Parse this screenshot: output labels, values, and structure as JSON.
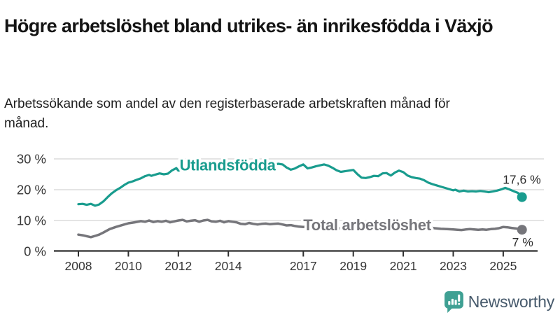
{
  "title": "Högre arbetslöshet bland utrikes- än inrikesfödda i Växjö",
  "subtitle": "Arbetssökande som andel av den registerbaserade arbetskraften månad för månad.",
  "footer": {
    "brand": "Newsworthy"
  },
  "colors": {
    "teal": "#199C8E",
    "gray": "#76767B",
    "grid": "#DBDBDB",
    "axis": "#2F2F2F",
    "axis_text": "#363636",
    "annotation": "#2B2B2B",
    "brand_icon": "#3FA093",
    "brand_text": "#46596B",
    "background": "#FFFFFF"
  },
  "chart_data": {
    "type": "line",
    "title": "Högre arbetslöshet bland utrikes- än inrikesfödda i Växjö",
    "subtitle": "Arbetssökande som andel av den registerbaserade arbetskraften månad för månad.",
    "xlabel": "",
    "ylabel": "",
    "ylim": [
      0,
      33
    ],
    "xlim": [
      2007.9,
      2026.3
    ],
    "grid": true,
    "legend_position": "inline-on-line",
    "y_ticks": [
      0,
      10,
      20,
      30
    ],
    "y_tick_labels": [
      "0 %",
      "10 %",
      "20 %",
      "30 %"
    ],
    "x_ticks": [
      2008,
      2010,
      2012,
      2014,
      2017,
      2019,
      2021,
      2023,
      2025
    ],
    "x_tick_labels": [
      "2008",
      "2010",
      "2012",
      "2014",
      "2017",
      "2019",
      "2021",
      "2023",
      "2025"
    ],
    "series": [
      {
        "id": "utlandsfodda",
        "name": "Utlandsfödda",
        "color": "#199C8E",
        "width": 3.2,
        "end_label": "17,6 %",
        "end_value": 17.6,
        "end_label_anchor": "end",
        "end_label_offset": [
          27,
          -19
        ],
        "label_pos": {
          "x": 2012.05,
          "v": 26.3
        },
        "data": [
          [
            2008.0,
            15.3
          ],
          [
            2008.17,
            15.4
          ],
          [
            2008.33,
            15.1
          ],
          [
            2008.5,
            15.4
          ],
          [
            2008.67,
            14.8
          ],
          [
            2008.83,
            15.2
          ],
          [
            2009.0,
            16.2
          ],
          [
            2009.17,
            17.6
          ],
          [
            2009.33,
            18.8
          ],
          [
            2009.5,
            19.8
          ],
          [
            2009.67,
            20.6
          ],
          [
            2009.83,
            21.5
          ],
          [
            2010.0,
            22.3
          ],
          [
            2010.17,
            22.7
          ],
          [
            2010.33,
            23.2
          ],
          [
            2010.5,
            23.7
          ],
          [
            2010.67,
            24.4
          ],
          [
            2010.83,
            24.8
          ],
          [
            2010.92,
            24.5
          ],
          [
            2011.08,
            24.9
          ],
          [
            2011.25,
            25.3
          ],
          [
            2011.42,
            25.0
          ],
          [
            2011.58,
            25.2
          ],
          [
            2011.75,
            26.3
          ],
          [
            2011.92,
            27.0
          ],
          [
            2012.0,
            26.2
          ],
          [
            2012.17,
            26.6
          ],
          [
            2012.33,
            27.0
          ],
          [
            2012.5,
            27.2
          ],
          [
            2012.67,
            27.5
          ],
          [
            2012.83,
            27.8
          ],
          [
            2013.0,
            28.0
          ],
          [
            2013.25,
            28.3
          ],
          [
            2013.5,
            28.5
          ],
          [
            2013.75,
            28.3
          ],
          [
            2014.0,
            28.6
          ],
          [
            2014.25,
            28.3
          ],
          [
            2014.5,
            28.1
          ],
          [
            2014.75,
            28.0
          ],
          [
            2015.0,
            28.2
          ],
          [
            2015.25,
            27.9
          ],
          [
            2015.5,
            27.7
          ],
          [
            2015.75,
            28.0
          ],
          [
            2016.0,
            28.4
          ],
          [
            2016.17,
            28.2
          ],
          [
            2016.33,
            27.2
          ],
          [
            2016.5,
            26.5
          ],
          [
            2016.67,
            26.9
          ],
          [
            2016.83,
            27.6
          ],
          [
            2017.0,
            28.2
          ],
          [
            2017.17,
            26.9
          ],
          [
            2017.33,
            27.2
          ],
          [
            2017.5,
            27.6
          ],
          [
            2017.67,
            27.9
          ],
          [
            2017.83,
            28.2
          ],
          [
            2018.0,
            27.8
          ],
          [
            2018.17,
            27.1
          ],
          [
            2018.33,
            26.3
          ],
          [
            2018.5,
            25.8
          ],
          [
            2018.67,
            26.0
          ],
          [
            2018.83,
            26.2
          ],
          [
            2019.0,
            26.4
          ],
          [
            2019.17,
            25.0
          ],
          [
            2019.33,
            23.9
          ],
          [
            2019.5,
            23.8
          ],
          [
            2019.67,
            24.1
          ],
          [
            2019.83,
            24.5
          ],
          [
            2020.0,
            24.4
          ],
          [
            2020.17,
            25.3
          ],
          [
            2020.33,
            25.4
          ],
          [
            2020.5,
            24.6
          ],
          [
            2020.67,
            25.6
          ],
          [
            2020.83,
            26.2
          ],
          [
            2021.0,
            25.7
          ],
          [
            2021.17,
            24.6
          ],
          [
            2021.33,
            24.1
          ],
          [
            2021.5,
            23.8
          ],
          [
            2021.67,
            23.6
          ],
          [
            2021.83,
            23.1
          ],
          [
            2022.0,
            22.3
          ],
          [
            2022.17,
            21.8
          ],
          [
            2022.33,
            21.4
          ],
          [
            2022.5,
            21.0
          ],
          [
            2022.67,
            20.6
          ],
          [
            2022.83,
            20.2
          ],
          [
            2023.0,
            19.8
          ],
          [
            2023.08,
            20.0
          ],
          [
            2023.25,
            19.4
          ],
          [
            2023.42,
            19.7
          ],
          [
            2023.58,
            19.4
          ],
          [
            2023.75,
            19.5
          ],
          [
            2023.92,
            19.4
          ],
          [
            2024.08,
            19.6
          ],
          [
            2024.25,
            19.4
          ],
          [
            2024.42,
            19.2
          ],
          [
            2024.58,
            19.4
          ],
          [
            2024.75,
            19.7
          ],
          [
            2024.92,
            20.1
          ],
          [
            2025.08,
            20.6
          ],
          [
            2025.25,
            20.1
          ],
          [
            2025.42,
            19.5
          ],
          [
            2025.58,
            19.0
          ],
          [
            2025.67,
            18.4
          ],
          [
            2025.75,
            17.6
          ]
        ]
      },
      {
        "id": "total",
        "name": "Total arbetslöshet",
        "color": "#76767B",
        "width": 3.5,
        "end_label": "7 %",
        "end_value": 7,
        "end_label_anchor": "middle",
        "end_label_offset": [
          1,
          24
        ],
        "label_pos": {
          "x": 2017.0,
          "v": 6.8
        },
        "data": [
          [
            2008.0,
            5.4
          ],
          [
            2008.17,
            5.2
          ],
          [
            2008.33,
            4.9
          ],
          [
            2008.5,
            4.6
          ],
          [
            2008.67,
            5.0
          ],
          [
            2008.83,
            5.4
          ],
          [
            2009.0,
            6.1
          ],
          [
            2009.25,
            7.2
          ],
          [
            2009.5,
            7.9
          ],
          [
            2009.75,
            8.5
          ],
          [
            2010.0,
            9.1
          ],
          [
            2010.25,
            9.4
          ],
          [
            2010.5,
            9.8
          ],
          [
            2010.67,
            9.6
          ],
          [
            2010.83,
            10.0
          ],
          [
            2011.0,
            9.5
          ],
          [
            2011.17,
            9.8
          ],
          [
            2011.33,
            9.6
          ],
          [
            2011.5,
            9.9
          ],
          [
            2011.67,
            9.4
          ],
          [
            2011.83,
            9.7
          ],
          [
            2012.0,
            10.0
          ],
          [
            2012.17,
            10.2
          ],
          [
            2012.33,
            9.7
          ],
          [
            2012.5,
            9.9
          ],
          [
            2012.67,
            10.1
          ],
          [
            2012.83,
            9.6
          ],
          [
            2013.0,
            10.0
          ],
          [
            2013.17,
            10.2
          ],
          [
            2013.33,
            9.7
          ],
          [
            2013.5,
            9.6
          ],
          [
            2013.67,
            9.9
          ],
          [
            2013.83,
            9.4
          ],
          [
            2014.0,
            9.8
          ],
          [
            2014.17,
            9.6
          ],
          [
            2014.33,
            9.4
          ],
          [
            2014.5,
            8.9
          ],
          [
            2014.67,
            8.8
          ],
          [
            2014.83,
            9.2
          ],
          [
            2015.0,
            8.9
          ],
          [
            2015.17,
            8.7
          ],
          [
            2015.33,
            8.9
          ],
          [
            2015.5,
            9.0
          ],
          [
            2015.67,
            8.8
          ],
          [
            2015.83,
            8.9
          ],
          [
            2016.0,
            9.0
          ],
          [
            2016.17,
            8.7
          ],
          [
            2016.33,
            8.4
          ],
          [
            2016.5,
            8.5
          ],
          [
            2016.67,
            8.2
          ],
          [
            2016.83,
            8.0
          ],
          [
            2017.0,
            7.9
          ],
          [
            2017.25,
            8.1
          ],
          [
            2017.5,
            7.9
          ],
          [
            2017.75,
            7.8
          ],
          [
            2018.0,
            7.9
          ],
          [
            2018.25,
            7.6
          ],
          [
            2018.5,
            7.5
          ],
          [
            2018.75,
            7.7
          ],
          [
            2019.0,
            7.8
          ],
          [
            2019.25,
            7.6
          ],
          [
            2019.5,
            7.7
          ],
          [
            2019.75,
            7.9
          ],
          [
            2020.0,
            8.2
          ],
          [
            2020.17,
            9.2
          ],
          [
            2020.33,
            9.6
          ],
          [
            2020.5,
            9.5
          ],
          [
            2020.75,
            9.3
          ],
          [
            2021.0,
            9.1
          ],
          [
            2021.25,
            8.7
          ],
          [
            2021.5,
            8.3
          ],
          [
            2021.75,
            8.0
          ],
          [
            2022.0,
            7.8
          ],
          [
            2022.25,
            7.5
          ],
          [
            2022.5,
            7.3
          ],
          [
            2022.75,
            7.2
          ],
          [
            2023.0,
            7.1
          ],
          [
            2023.17,
            7.0
          ],
          [
            2023.33,
            6.9
          ],
          [
            2023.5,
            7.1
          ],
          [
            2023.67,
            7.2
          ],
          [
            2023.83,
            7.1
          ],
          [
            2024.0,
            7.0
          ],
          [
            2024.17,
            7.1
          ],
          [
            2024.33,
            7.0
          ],
          [
            2024.5,
            7.2
          ],
          [
            2024.67,
            7.3
          ],
          [
            2024.83,
            7.5
          ],
          [
            2025.0,
            7.9
          ],
          [
            2025.17,
            7.8
          ],
          [
            2025.33,
            7.6
          ],
          [
            2025.5,
            7.4
          ],
          [
            2025.67,
            7.2
          ],
          [
            2025.75,
            7.0
          ]
        ]
      }
    ]
  }
}
